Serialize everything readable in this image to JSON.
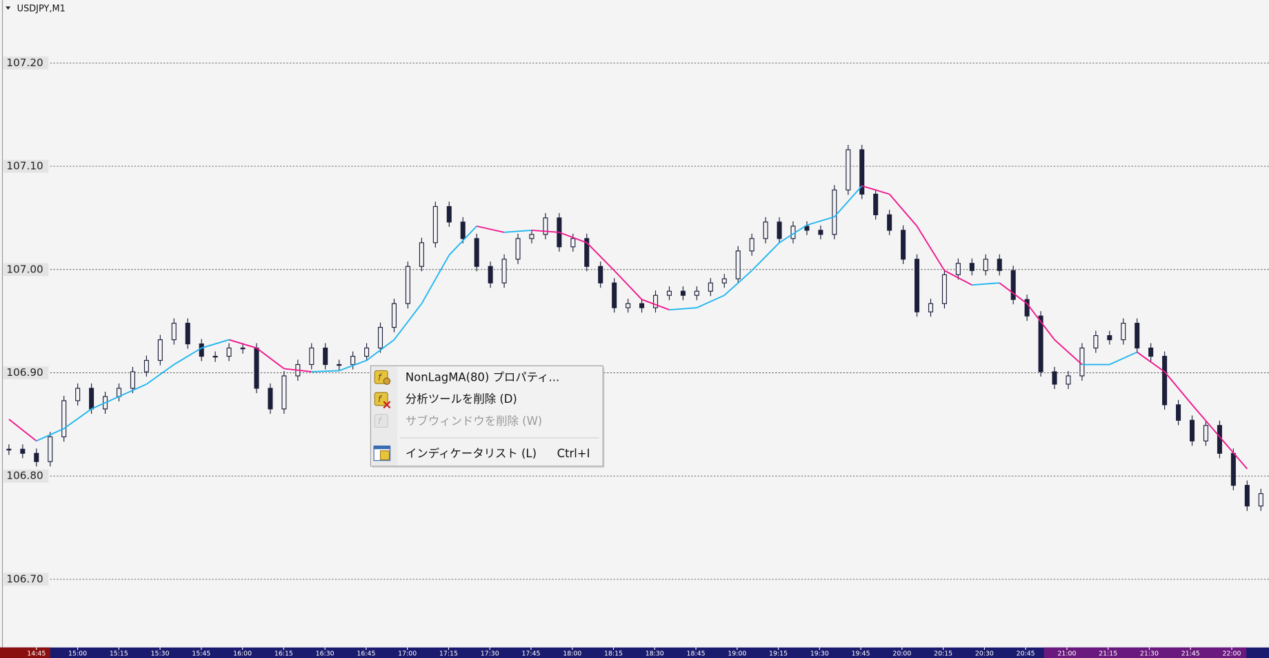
{
  "chart": {
    "type": "candlestick",
    "symbol": "USDJPY,M1",
    "grid": true,
    "ylim": [
      106.634,
      107.261
    ],
    "yticks": [
      {
        "value": 107.2,
        "label": "107.20"
      },
      {
        "value": 107.1,
        "label": "107.10"
      },
      {
        "value": 107,
        "label": "107.00"
      },
      {
        "value": 106.9,
        "label": "106.90"
      },
      {
        "value": 106.8,
        "label": "106.80"
      },
      {
        "value": 106.7,
        "label": "106.70"
      }
    ],
    "xticks": [
      "14:45",
      "15:00",
      "15:15",
      "15:30",
      "15:45",
      "16:00",
      "16:15",
      "16:30",
      "16:45",
      "17:00",
      "17:15",
      "17:30",
      "17:45",
      "18:00",
      "18:15",
      "18:30",
      "18:45",
      "19:00",
      "19:15",
      "19:30",
      "19:45",
      "20:00",
      "20:15",
      "20:30",
      "20:45",
      "21:00",
      "21:15",
      "21:30",
      "21:45",
      "22:00"
    ],
    "close": [
      106.826,
      106.822,
      106.814,
      106.838,
      106.873,
      106.885,
      106.865,
      106.877,
      106.885,
      106.901,
      106.912,
      106.932,
      106.948,
      106.928,
      106.916,
      106.916,
      106.924,
      106.924,
      106.885,
      106.865,
      106.897,
      106.908,
      106.924,
      106.908,
      106.908,
      106.916,
      106.924,
      106.944,
      106.967,
      107.003,
      107.026,
      107.061,
      107.046,
      107.03,
      107.003,
      106.987,
      107.01,
      107.03,
      107.034,
      107.05,
      107.022,
      107.03,
      107.003,
      106.987,
      106.963,
      106.967,
      106.963,
      106.975,
      106.979,
      106.975,
      106.979,
      106.987,
      106.991,
      107.018,
      107.03,
      107.046,
      107.03,
      107.042,
      107.038,
      107.034,
      107.077,
      107.116,
      107.073,
      107.053,
      107.038,
      107.01,
      106.959,
      106.967,
      106.995,
      107.006,
      106.999,
      107.01,
      106.999,
      106.971,
      106.955,
      106.901,
      106.889,
      106.897,
      106.924,
      106.936,
      106.932,
      106.948,
      106.924,
      106.916,
      106.869,
      106.854,
      106.834,
      106.849,
      106.822,
      106.791,
      106.771,
      106.783
    ],
    "candle_color": "#1c1f3a",
    "ma": {
      "up_color": "#1fb5f0",
      "down_color": "#f0148c",
      "values": [
        106.855,
        106.834,
        106.846,
        106.865,
        106.877,
        106.889,
        106.908,
        106.924,
        106.932,
        106.924,
        106.904,
        106.901,
        106.902,
        106.912,
        106.932,
        106.967,
        107.014,
        107.042,
        107.036,
        107.038,
        107.036,
        107.026,
        106.999,
        106.971,
        106.961,
        106.963,
        106.975,
        106.999,
        107.026,
        107.043,
        107.051,
        107.081,
        107.073,
        107.042,
        106.999,
        106.985,
        106.987,
        106.967,
        106.932,
        106.908,
        106.908,
        106.92,
        106.901,
        106.869,
        106.838,
        106.807
      ]
    }
  },
  "context_menu": {
    "items": [
      {
        "label": "NonLagMA(80) プロパティ...",
        "enabled": true
      },
      {
        "label": "分析ツールを削除 (D)",
        "enabled": true
      },
      {
        "label": "サブウィンドウを削除 (W)",
        "enabled": false
      },
      {
        "label": "インディケータリスト (L)",
        "shortcut": "Ctrl+I",
        "enabled": true
      }
    ]
  }
}
